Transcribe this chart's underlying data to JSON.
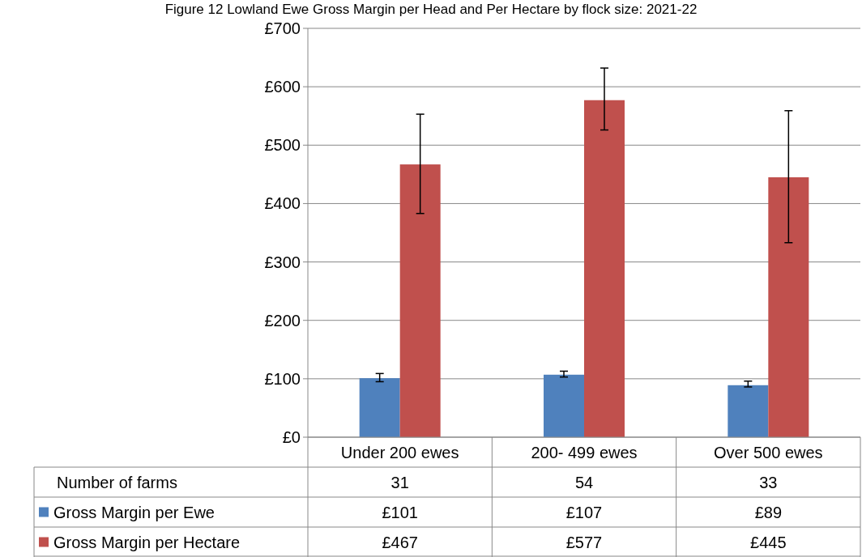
{
  "chart_data": {
    "type": "bar",
    "title": "Figure 12 Lowland Ewe Gross Margin per Head and Per Hectare by flock size: 2021-22",
    "categories": [
      "Under 200 ewes",
      "200- 499 ewes",
      "Over 500 ewes"
    ],
    "series": [
      {
        "name": "Gross Margin per Ewe",
        "color": "#4f81bd",
        "values": [
          101,
          107,
          89
        ],
        "value_labels": [
          "£101",
          "£107",
          "£89"
        ],
        "errors": [
          [
            95,
            109
          ],
          [
            103,
            113
          ],
          [
            86,
            96
          ]
        ]
      },
      {
        "name": "Gross Margin per Hectare",
        "color": "#c0504d",
        "values": [
          467,
          577,
          445
        ],
        "value_labels": [
          "£467",
          "£577",
          "£445"
        ],
        "errors": [
          [
            383,
            553
          ],
          [
            526,
            632
          ],
          [
            333,
            559
          ]
        ]
      }
    ],
    "ylim": [
      0,
      700
    ],
    "yticks": [
      {
        "value": 0,
        "label": "£0"
      },
      {
        "value": 100,
        "label": "£100"
      },
      {
        "value": 200,
        "label": "£200"
      },
      {
        "value": 300,
        "label": "£300"
      },
      {
        "value": 400,
        "label": "£400"
      },
      {
        "value": 500,
        "label": "£500"
      },
      {
        "value": 600,
        "label": "£600"
      },
      {
        "value": 700,
        "label": "£700"
      }
    ],
    "grid": "y",
    "legend": "bottom",
    "annotations": [
      "Number of farms",
      "31",
      "54",
      "33"
    ]
  }
}
